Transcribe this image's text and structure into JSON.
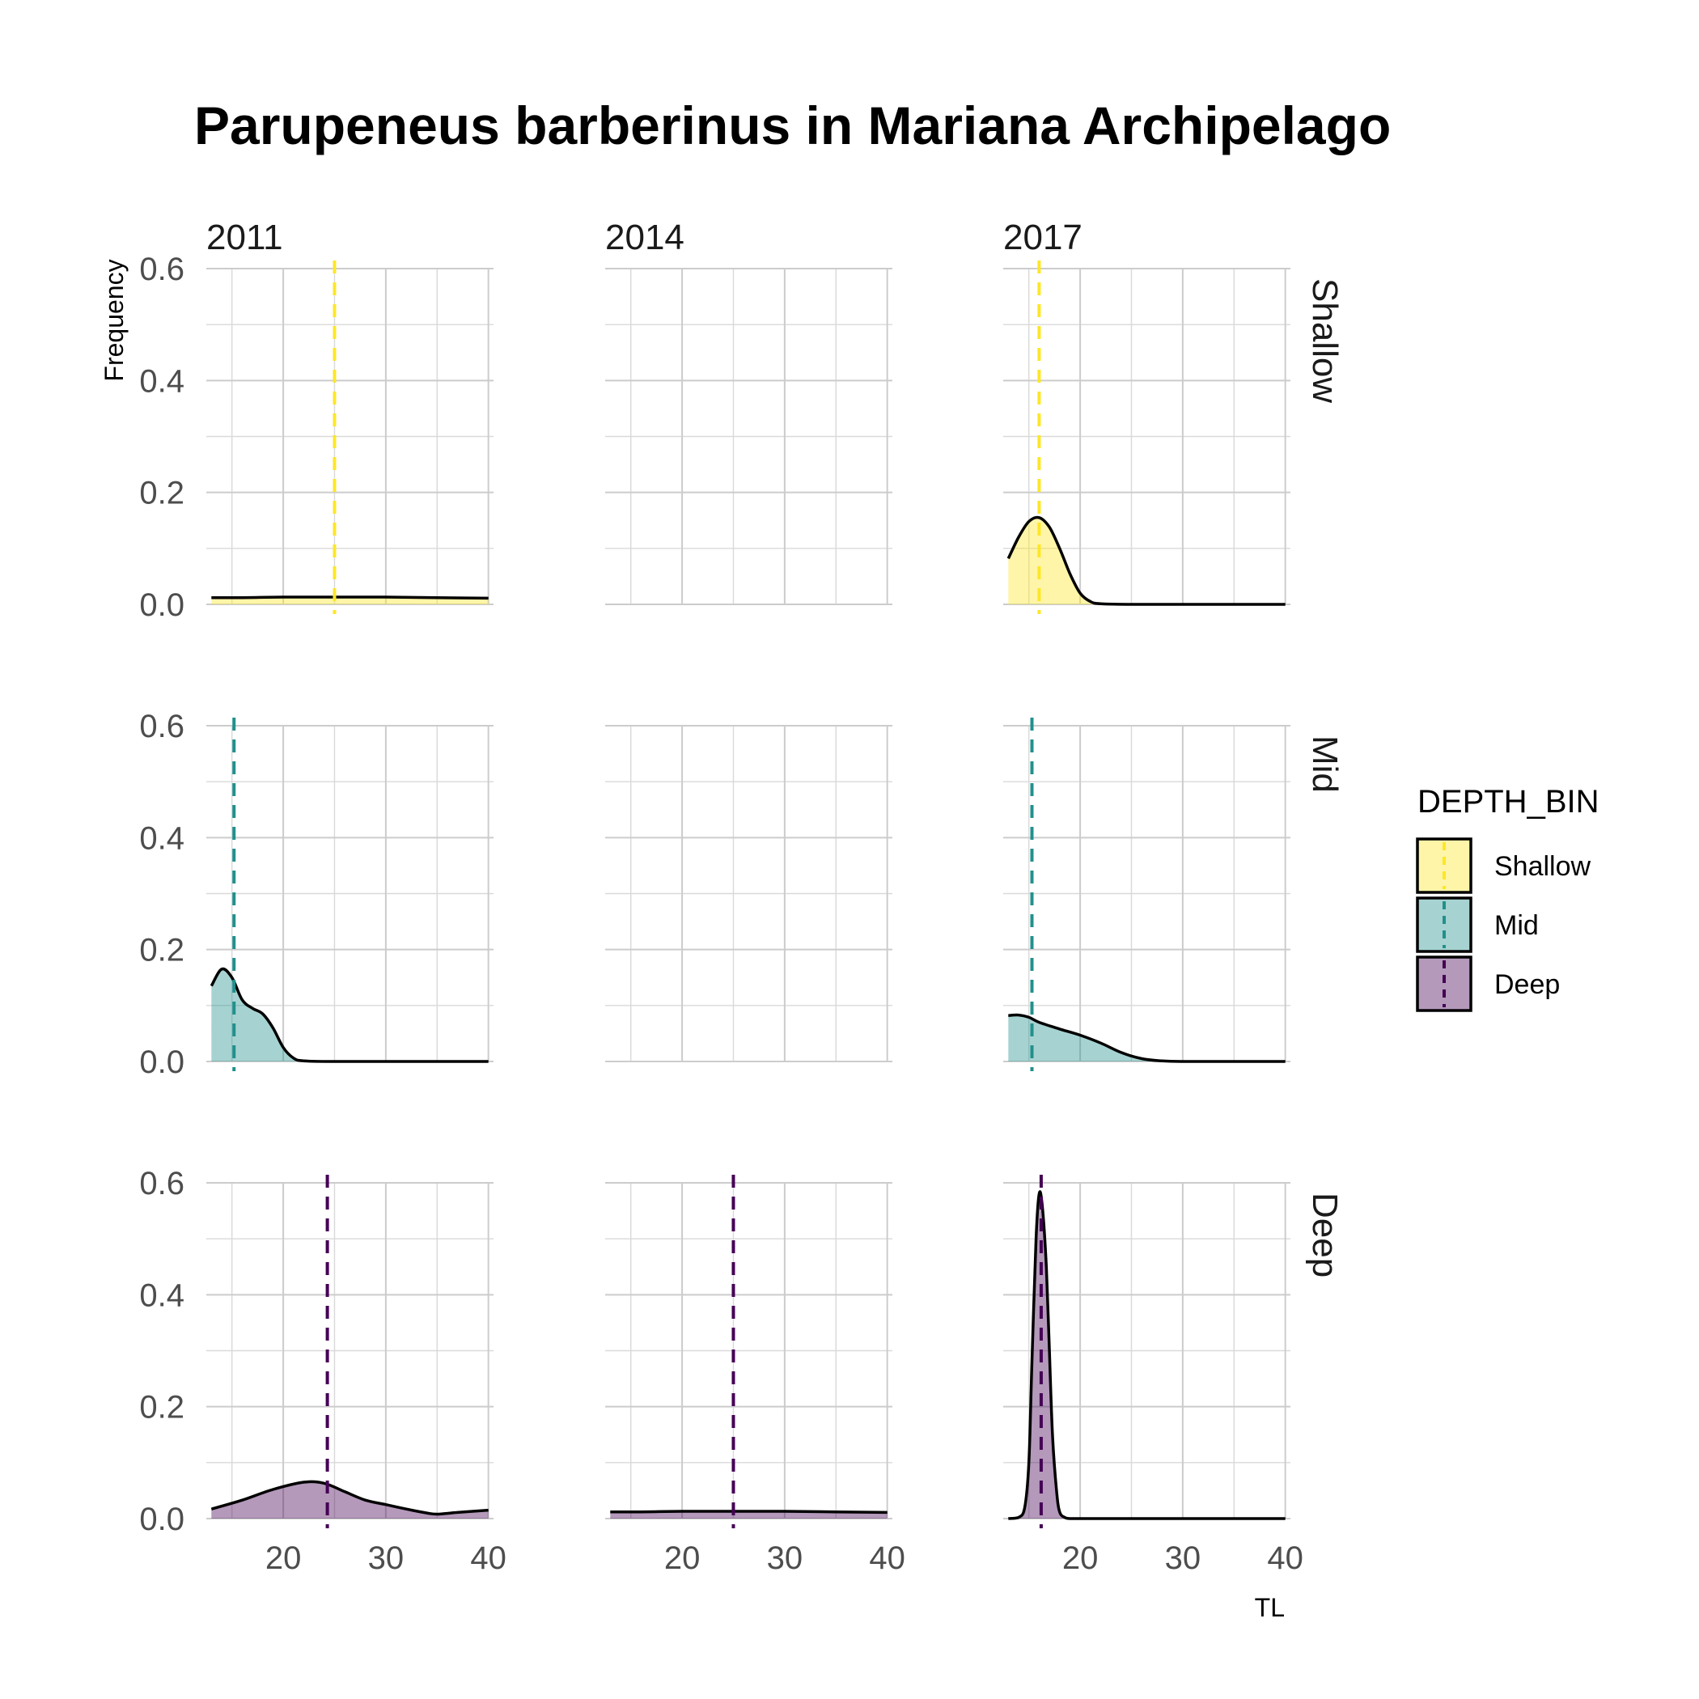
{
  "chart_data": {
    "type": "area",
    "subtype": "faceted density plot",
    "title": "Parupeneus barberinus in Mariana Archipelago",
    "xlabel": "TL",
    "ylabel": "Frequency",
    "xlim": [
      12.5,
      40.5
    ],
    "ylim": [
      0,
      0.6
    ],
    "x_ticks": [
      20,
      30,
      40
    ],
    "y_ticks": [
      0.0,
      0.2,
      0.4,
      0.6
    ],
    "y_tick_labels": [
      "0.0",
      "0.2",
      "0.4",
      "0.6"
    ],
    "grid": true,
    "legend_position": "right",
    "legend_title": "DEPTH_BIN",
    "columns": [
      "2011",
      "2014",
      "2017"
    ],
    "rows": [
      "Shallow",
      "Mid",
      "Deep"
    ],
    "colors": {
      "Shallow": "#FDE725",
      "Mid": "#21908C",
      "Deep": "#440154",
      "curve": "#000000"
    },
    "legend": [
      {
        "label": "Shallow",
        "color": "#FDE725"
      },
      {
        "label": "Mid",
        "color": "#21908C"
      },
      {
        "label": "Deep",
        "color": "#440154"
      }
    ],
    "panels": [
      {
        "row": "Shallow",
        "col": "2011",
        "mean": 25,
        "x": [
          13,
          16,
          20,
          25,
          30,
          35,
          40
        ],
        "y": [
          0.012,
          0.012,
          0.013,
          0.013,
          0.013,
          0.012,
          0.011
        ]
      },
      {
        "row": "Shallow",
        "col": "2014",
        "mean": null,
        "x": [],
        "y": []
      },
      {
        "row": "Shallow",
        "col": "2017",
        "mean": 16,
        "x": [
          13,
          14,
          15,
          16,
          17,
          18,
          19,
          20,
          21,
          22,
          25,
          30,
          35,
          40
        ],
        "y": [
          0.082,
          0.12,
          0.148,
          0.155,
          0.138,
          0.1,
          0.055,
          0.02,
          0.005,
          0.001,
          0,
          0,
          0,
          0
        ]
      },
      {
        "row": "Mid",
        "col": "2011",
        "mean": 15.2,
        "x": [
          13,
          14,
          15,
          16,
          17,
          18,
          19,
          20,
          21,
          22,
          25,
          30,
          35,
          40
        ],
        "y": [
          0.135,
          0.165,
          0.15,
          0.11,
          0.095,
          0.085,
          0.06,
          0.025,
          0.006,
          0.001,
          0,
          0,
          0,
          0
        ]
      },
      {
        "row": "Mid",
        "col": "2014",
        "mean": null,
        "x": [],
        "y": []
      },
      {
        "row": "Mid",
        "col": "2017",
        "mean": 15.3,
        "x": [
          13,
          14,
          15,
          16,
          18,
          20,
          22,
          24,
          26,
          28,
          30,
          35,
          40
        ],
        "y": [
          0.082,
          0.083,
          0.079,
          0.07,
          0.058,
          0.047,
          0.033,
          0.016,
          0.005,
          0.001,
          0,
          0,
          0
        ]
      },
      {
        "row": "Deep",
        "col": "2011",
        "mean": 24.3,
        "x": [
          13,
          16,
          19,
          22,
          24,
          26,
          28,
          30,
          32,
          34,
          35,
          37,
          40
        ],
        "y": [
          0.017,
          0.033,
          0.052,
          0.065,
          0.063,
          0.048,
          0.033,
          0.025,
          0.017,
          0.01,
          0.008,
          0.011,
          0.015
        ]
      },
      {
        "row": "Deep",
        "col": "2014",
        "mean": 25,
        "x": [
          13,
          16,
          20,
          25,
          30,
          35,
          40
        ],
        "y": [
          0.012,
          0.012,
          0.013,
          0.013,
          0.013,
          0.012,
          0.011
        ]
      },
      {
        "row": "Deep",
        "col": "2017",
        "mean": 16.2,
        "x": [
          13,
          14,
          14.6,
          15,
          15.3,
          15.7,
          16,
          16.3,
          16.7,
          17,
          17.3,
          17.7,
          18,
          18.5,
          19,
          20,
          25,
          30,
          40
        ],
        "y": [
          0,
          0.002,
          0.02,
          0.1,
          0.28,
          0.5,
          0.58,
          0.56,
          0.45,
          0.3,
          0.15,
          0.05,
          0.012,
          0.002,
          0,
          0,
          0,
          0,
          0
        ]
      }
    ]
  }
}
